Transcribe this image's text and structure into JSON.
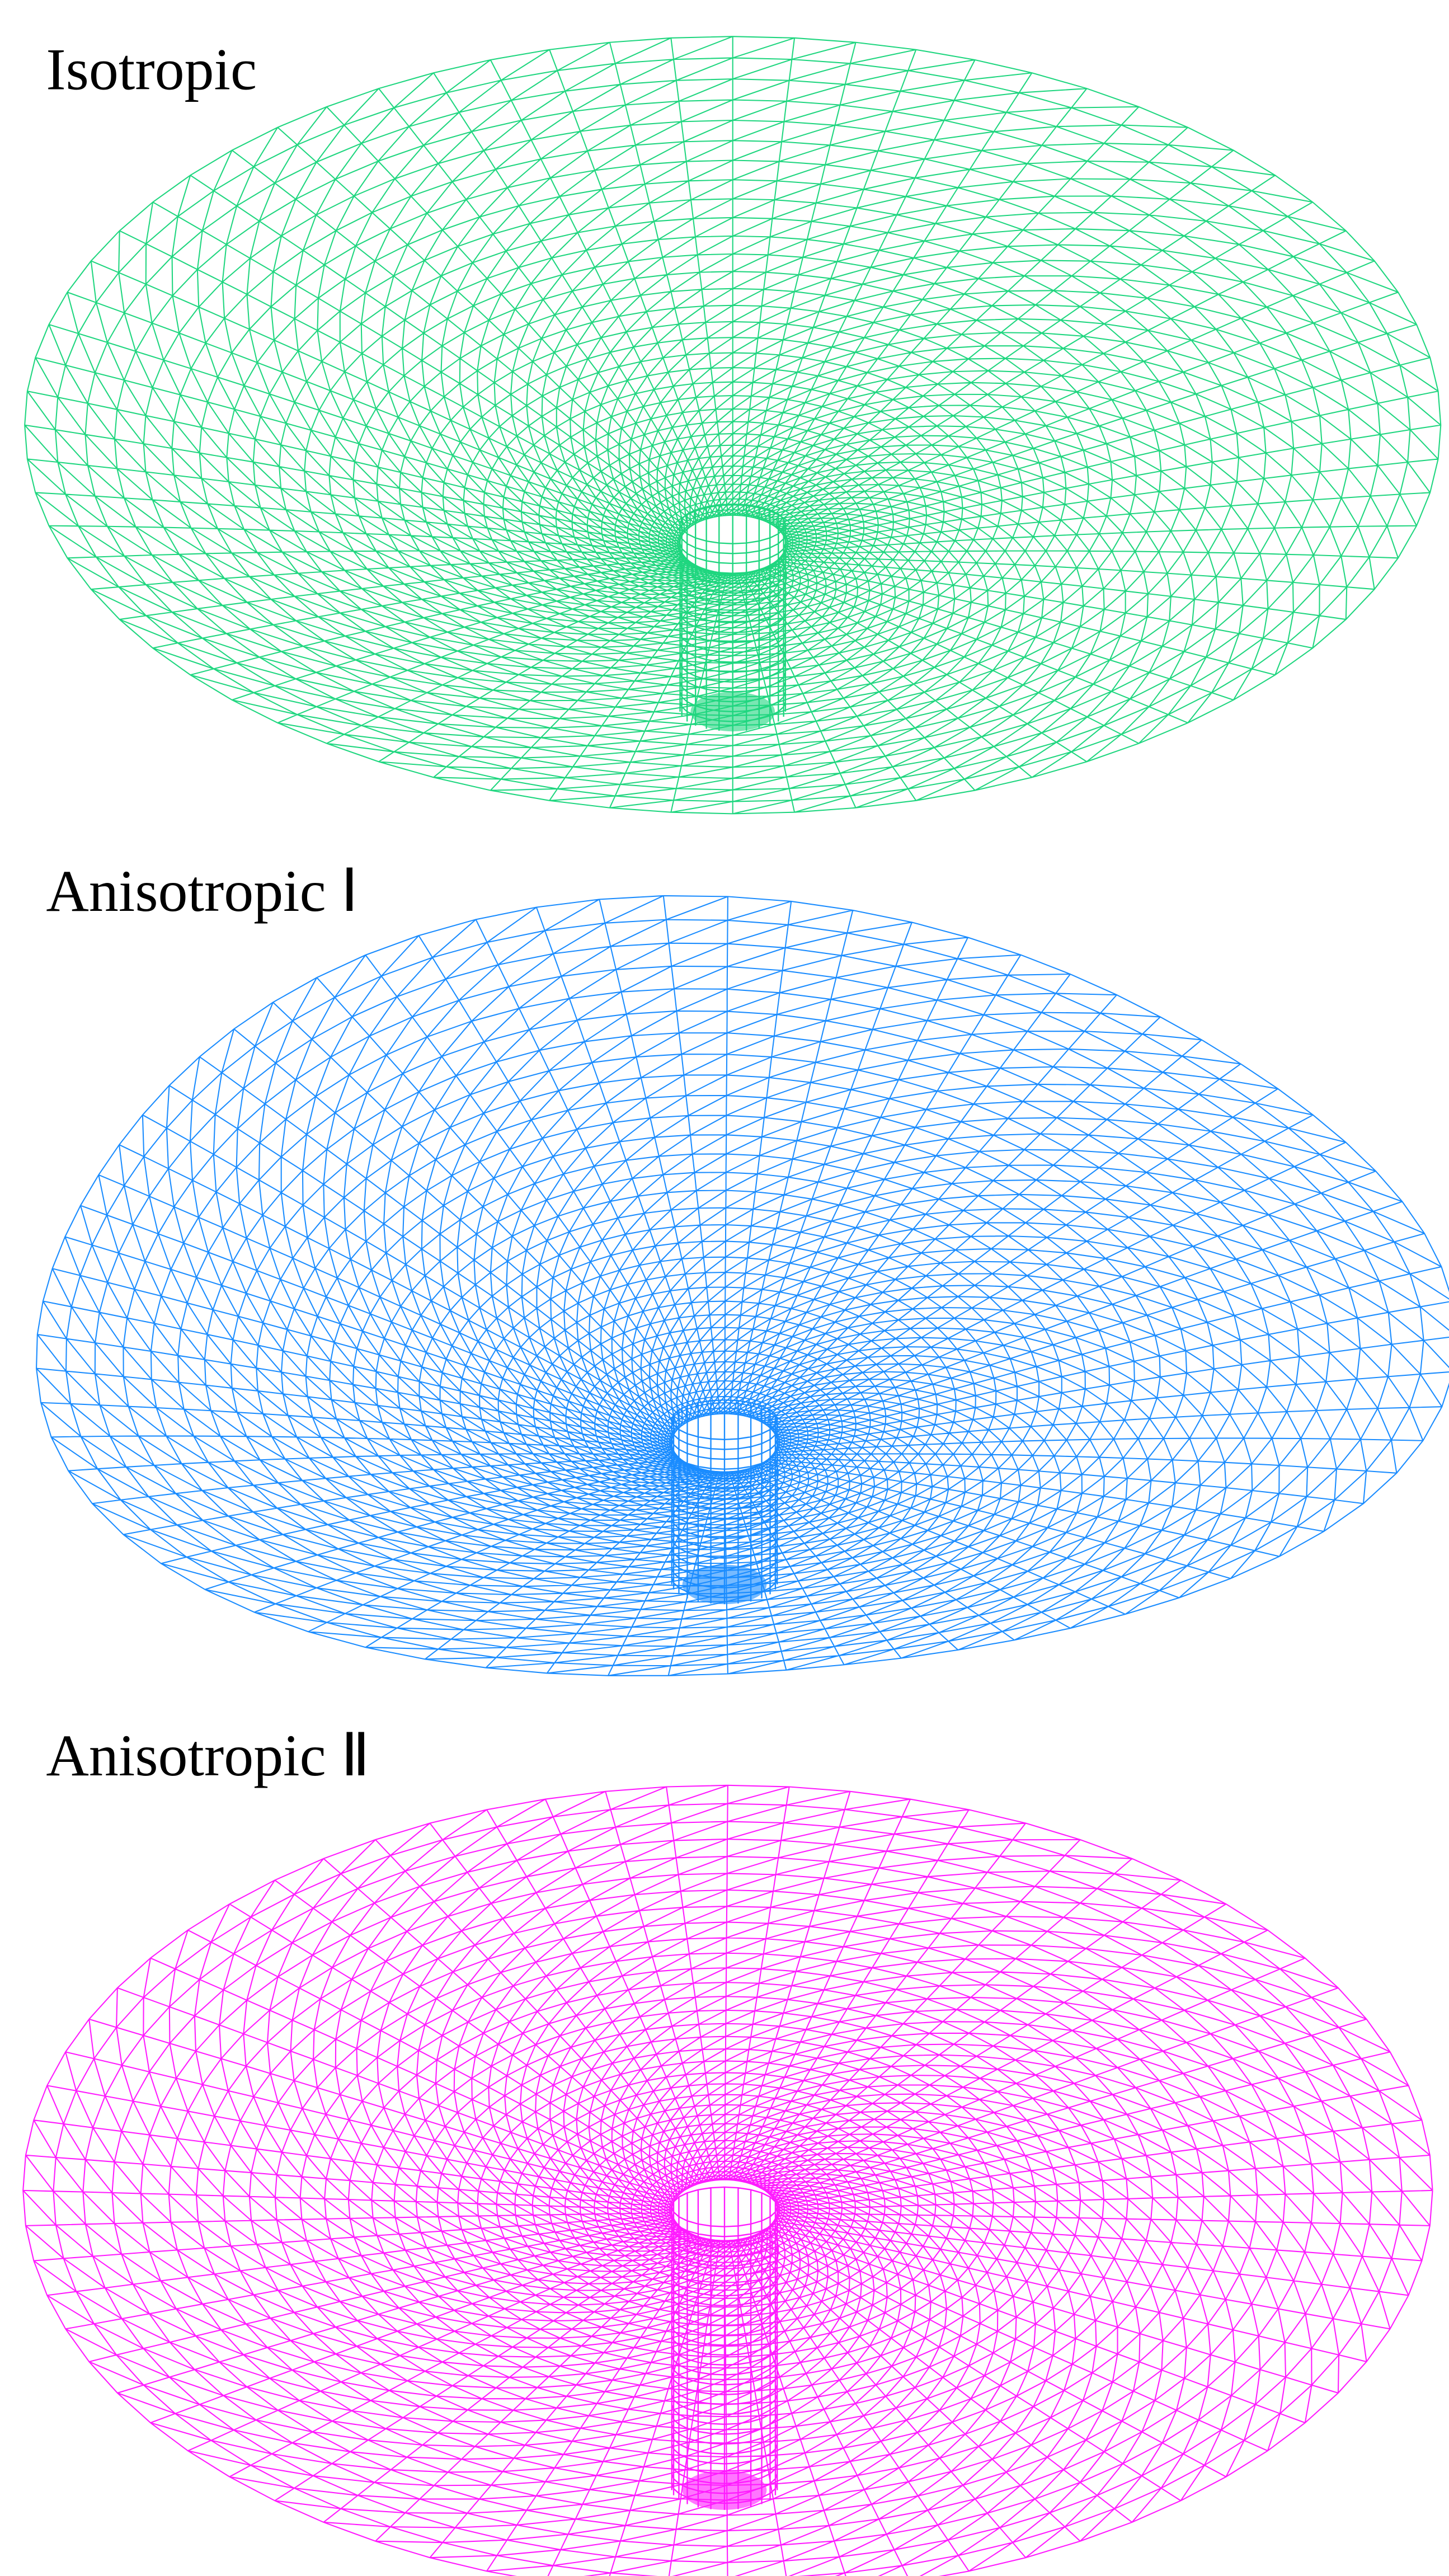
{
  "panels": [
    {
      "label": "Isotropic",
      "color": "#1fd67f"
    },
    {
      "label": "Anisotropic Ⅰ",
      "color": "#1a8cff"
    },
    {
      "label": "Anisotropic Ⅱ",
      "color": "#ff1aff"
    }
  ]
}
